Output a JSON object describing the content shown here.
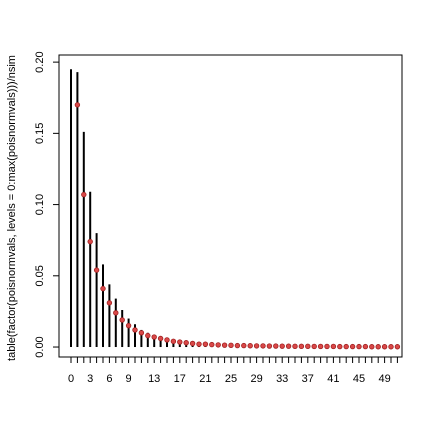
{
  "chart_data": {
    "type": "h",
    "y_label": "table(factor(poisnormvals, levels = 0:max(poisnormvals)))/nsim",
    "categories": [
      "0",
      null,
      null,
      "3",
      null,
      null,
      "6",
      null,
      null,
      "9",
      null,
      null,
      null,
      "13",
      null,
      null,
      null,
      "17",
      null,
      null,
      null,
      "21",
      null,
      null,
      null,
      "25",
      null,
      null,
      null,
      "29",
      null,
      null,
      null,
      "33",
      null,
      null,
      null,
      "37",
      null,
      null,
      null,
      "41",
      null,
      null,
      null,
      "45",
      null,
      null,
      null,
      "49",
      null,
      null
    ],
    "series": [
      {
        "color": "#000000",
        "values": [
          0.195,
          0.193,
          0.151,
          0.109,
          0.08,
          0.058,
          0.044,
          0.034,
          0.026,
          0.02,
          0.016,
          0.012,
          0.01,
          0.008,
          0.007,
          0.006,
          0.005,
          0.004,
          0.0035,
          0.003,
          0.0025,
          0.002,
          0.002,
          0.0015,
          0.0015,
          0.001,
          0.001,
          0.001,
          0.001,
          0.001,
          0.0008,
          0.0008,
          0.0007,
          0.0007,
          0.0006,
          0.0006,
          0.0005,
          0.0005,
          0.0005,
          0.0004,
          0.0004,
          0.0004,
          0.0003,
          0.0003,
          0.0003,
          0.0003,
          0.0002,
          0.0002,
          0.0002,
          0.0002,
          0.0002,
          0.0002
        ]
      },
      {
        "color": "#d94848",
        "values": [
          null,
          0.17,
          0.107,
          0.074,
          0.054,
          0.041,
          0.031,
          0.024,
          0.019,
          0.015,
          0.012,
          0.01,
          0.008,
          0.007,
          0.006,
          0.005,
          0.004,
          0.0035,
          0.003,
          0.0025,
          0.002,
          0.002,
          0.0017,
          0.0015,
          0.0013,
          0.0012,
          0.001,
          0.001,
          0.0009,
          0.0008,
          0.0008,
          0.0007,
          0.0007,
          0.0006,
          0.0006,
          0.0005,
          0.0005,
          0.0005,
          0.0004,
          0.0004,
          0.0004,
          0.0004,
          0.0003,
          0.0003,
          0.0003,
          0.0003,
          0.0003,
          0.0002,
          0.0002,
          0.0002,
          0.0002,
          0.0002
        ]
      }
    ],
    "ylim": [
      -0.007,
      0.205
    ],
    "yticks": [
      {
        "value": 0,
        "label": "0.00"
      },
      {
        "value": 0.05,
        "label": "0.05"
      },
      {
        "value": 0.1,
        "label": "0.10"
      },
      {
        "value": 0.15,
        "label": "0.15"
      },
      {
        "value": 0.2,
        "label": "0.20"
      }
    ]
  }
}
